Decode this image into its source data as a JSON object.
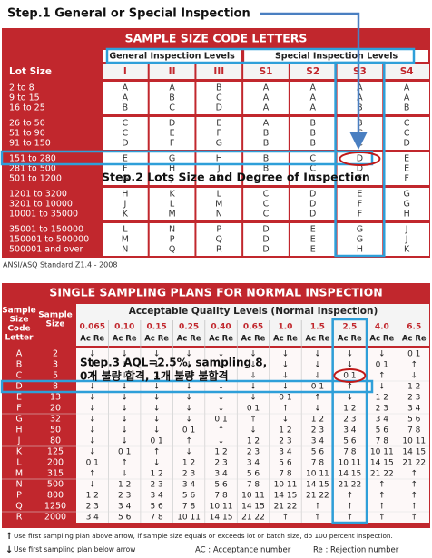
{
  "step1": "Step.1 General or Special Inspection",
  "step2": "Step.2 Lots Size and Degree of Inspection",
  "step3": [
    "Step.3 AQL=2.5%, sampling 8,",
    "0개 불량 합격, 1개 불량 불합격"
  ],
  "table1": {
    "title": "SAMPLE SIZE CODE LETTERS",
    "group_headers": [
      "General Inspection Levels",
      "Special Inspection Levels"
    ],
    "columns": [
      "Lot Size",
      "I",
      "II",
      "III",
      "S1",
      "S2",
      "S3",
      "S4"
    ],
    "groups": [
      [
        {
          "lot": "2 to 8",
          "codes": [
            "A",
            "A",
            "B",
            "A",
            "A",
            "A",
            "A"
          ]
        },
        {
          "lot": "9 to 15",
          "codes": [
            "A",
            "B",
            "C",
            "A",
            "A",
            "A",
            "A"
          ]
        },
        {
          "lot": "16 to 25",
          "codes": [
            "B",
            "C",
            "D",
            "A",
            "A",
            "B",
            "B"
          ]
        }
      ],
      [
        {
          "lot": "26 to 50",
          "codes": [
            "C",
            "D",
            "E",
            "A",
            "B",
            "B",
            "C"
          ]
        },
        {
          "lot": "51 to 90",
          "codes": [
            "C",
            "E",
            "F",
            "B",
            "B",
            "C",
            "C"
          ]
        },
        {
          "lot": "91 to 150",
          "codes": [
            "D",
            "F",
            "G",
            "B",
            "B",
            "C",
            "D"
          ]
        }
      ],
      [
        {
          "lot": "151 to 280",
          "codes": [
            "E",
            "G",
            "H",
            "B",
            "C",
            "D",
            "E"
          ]
        },
        {
          "lot": "281 to 500",
          "codes": [
            "F",
            "H",
            "J",
            "B",
            "C",
            "D",
            "E"
          ]
        },
        {
          "lot": "501 to 1200",
          "codes": [
            "G",
            "J",
            "K",
            "C",
            "C",
            "E",
            "F"
          ]
        }
      ],
      [
        {
          "lot": "1201 to 3200",
          "codes": [
            "H",
            "K",
            "L",
            "C",
            "D",
            "E",
            "G"
          ]
        },
        {
          "lot": "3201 to 10000",
          "codes": [
            "J",
            "L",
            "M",
            "C",
            "D",
            "F",
            "G"
          ]
        },
        {
          "lot": "10001 to 35000",
          "codes": [
            "K",
            "M",
            "N",
            "C",
            "D",
            "F",
            "H"
          ]
        }
      ],
      [
        {
          "lot": "35001 to 150000",
          "codes": [
            "L",
            "N",
            "P",
            "D",
            "E",
            "G",
            "J"
          ]
        },
        {
          "lot": "150001 to 500000",
          "codes": [
            "M",
            "P",
            "Q",
            "D",
            "E",
            "G",
            "J"
          ]
        },
        {
          "lot": "500001 and over",
          "codes": [
            "N",
            "Q",
            "R",
            "D",
            "E",
            "H",
            "K"
          ]
        }
      ]
    ],
    "source": "ANSI/ASQ Standard Z1.4 - 2008"
  },
  "table2": {
    "title": "SINGLE SAMPLING PLANS FOR NORMAL INSPECTION",
    "code_header": [
      "Sample",
      "Size",
      "Code",
      "Letter"
    ],
    "size_header": [
      "Sample",
      "Size"
    ],
    "aql_title": "Acceptable Quality Levels (Normal Inspection)",
    "aql": [
      "0.065",
      "0.10",
      "0.15",
      "0.25",
      "0.40",
      "0.65",
      "1.0",
      "1.5",
      "2.5",
      "4.0",
      "6.5"
    ],
    "ac_re": "Ac Re",
    "rows": [
      {
        "letter": "A",
        "size": 2,
        "cells": [
          "↓",
          "↓",
          "↓",
          "↓",
          "↓",
          "↓",
          "↓",
          "↓",
          "↓",
          "↓",
          "0 1"
        ]
      },
      {
        "letter": "B",
        "size": 3,
        "cells": [
          "↓",
          "↓",
          "↓",
          "↓",
          "↓",
          "↓",
          "↓",
          "↓",
          "↓",
          "0 1",
          "↑"
        ]
      },
      {
        "letter": "C",
        "size": 5,
        "cells": [
          "↓",
          "↓",
          "↓",
          "↓",
          "↓",
          "↓",
          "↓",
          "↓",
          "0 1",
          "↑",
          "↓"
        ]
      },
      {
        "letter": "D",
        "size": 8,
        "cells": [
          "↓",
          "↓",
          "↓",
          "↓",
          "↓",
          "↓",
          "↓",
          "0 1",
          "↑",
          "↓",
          "1 2"
        ]
      },
      {
        "letter": "E",
        "size": 13,
        "cells": [
          "↓",
          "↓",
          "↓",
          "↓",
          "↓",
          "↓",
          "0 1",
          "↑",
          "↓",
          "1 2",
          "2 3"
        ]
      },
      {
        "letter": "F",
        "size": 20,
        "cells": [
          "↓",
          "↓",
          "↓",
          "↓",
          "↓",
          "0 1",
          "↑",
          "↓",
          "1 2",
          "2 3",
          "3 4"
        ]
      },
      {
        "letter": "G",
        "size": 32,
        "cells": [
          "↓",
          "↓",
          "↓",
          "↓",
          "0 1",
          "↑",
          "↓",
          "1 2",
          "2 3",
          "3 4",
          "5 6"
        ]
      },
      {
        "letter": "H",
        "size": 50,
        "cells": [
          "↓",
          "↓",
          "↓",
          "0 1",
          "↑",
          "↓",
          "1 2",
          "2 3",
          "3 4",
          "5 6",
          "7 8"
        ]
      },
      {
        "letter": "J",
        "size": 80,
        "cells": [
          "↓",
          "↓",
          "0 1",
          "↑",
          "↓",
          "1 2",
          "2 3",
          "3 4",
          "5 6",
          "7 8",
          "10 11"
        ]
      },
      {
        "letter": "K",
        "size": 125,
        "cells": [
          "↓",
          "0 1",
          "↑",
          "↓",
          "1 2",
          "2 3",
          "3 4",
          "5 6",
          "7 8",
          "10 11",
          "14 15"
        ]
      },
      {
        "letter": "L",
        "size": 200,
        "cells": [
          "0 1",
          "↑",
          "↓",
          "1 2",
          "2 3",
          "3 4",
          "5 6",
          "7 8",
          "10 11",
          "14 15",
          "21 22"
        ]
      },
      {
        "letter": "M",
        "size": 315,
        "cells": [
          "↑",
          "↓",
          "1 2",
          "2 3",
          "3 4",
          "5 6",
          "7 8",
          "10 11",
          "14 15",
          "21 22",
          "↑"
        ]
      },
      {
        "letter": "N",
        "size": 500,
        "cells": [
          "↓",
          "1 2",
          "2 3",
          "3 4",
          "5 6",
          "7 8",
          "10 11",
          "14 15",
          "21 22",
          "↑",
          "↑"
        ]
      },
      {
        "letter": "P",
        "size": 800,
        "cells": [
          "1 2",
          "2 3",
          "3 4",
          "5 6",
          "7 8",
          "10 11",
          "14 15",
          "21 22",
          "↑",
          "↑",
          "↑"
        ]
      },
      {
        "letter": "Q",
        "size": 1250,
        "cells": [
          "2 3",
          "3 4",
          "5 6",
          "7 8",
          "10 11",
          "14 15",
          "21 22",
          "↑",
          "↑",
          "↑",
          "↑"
        ]
      },
      {
        "letter": "R",
        "size": 2000,
        "cells": [
          "3 4",
          "5 6",
          "7 8",
          "10 11",
          "14 15",
          "21 22",
          "↑",
          "↑",
          "↑",
          "↑",
          "↑"
        ]
      }
    ],
    "note_up": "Use first sampling plan above arrow, if sample size equals or exceeds lot or batch size, do 100 percent inspection.",
    "note_down": "Use first sampling plan below arrow",
    "ac_note": "AC : Acceptance number",
    "re_note": "Re : Rejection number"
  }
}
